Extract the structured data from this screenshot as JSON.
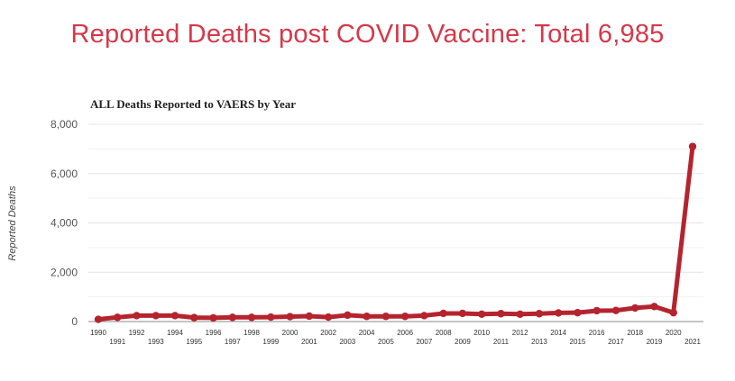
{
  "headline": "Reported Deaths post COVID Vaccine: Total 6,985",
  "colors": {
    "headline": "#d5394a",
    "series": "#b5242e",
    "grid": "#e4e4e4",
    "axis": "#888888"
  },
  "chart_data": {
    "type": "line",
    "title": "ALL Deaths Reported to VAERS by Year",
    "xlabel": "",
    "ylabel": "Reported Deaths",
    "ylim": [
      0,
      8000
    ],
    "yticks": [
      "0",
      "2,000",
      "4,000",
      "6,000",
      "8,000"
    ],
    "ytick_values": [
      0,
      2000,
      4000,
      6000,
      8000
    ],
    "grid": true,
    "legend": "none",
    "categories": [
      "1990",
      "1991",
      "1992",
      "1993",
      "1994",
      "1995",
      "1996",
      "1997",
      "1998",
      "1999",
      "2000",
      "2001",
      "2002",
      "2003",
      "2004",
      "2005",
      "2006",
      "2007",
      "2008",
      "2009",
      "2010",
      "2011",
      "2012",
      "2013",
      "2014",
      "2015",
      "2016",
      "2017",
      "2018",
      "2019",
      "2020",
      "2021"
    ],
    "series": [
      {
        "name": "",
        "values": [
          90,
          170,
          240,
          240,
          240,
          160,
          150,
          170,
          170,
          180,
          200,
          220,
          180,
          260,
          210,
          210,
          210,
          240,
          330,
          330,
          300,
          320,
          300,
          320,
          350,
          360,
          440,
          450,
          550,
          610,
          360,
          7100
        ]
      }
    ]
  }
}
